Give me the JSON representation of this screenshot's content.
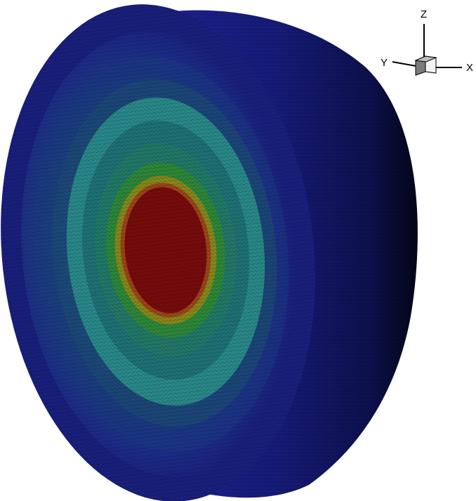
{
  "axes_triad": {
    "z_label": "Z",
    "y_label": "Y",
    "x_label": "X"
  },
  "contour_colors": {
    "outer_shell": "#1a1f86",
    "shell_dark_edge": "#0a0d3a",
    "band_blue": "#1d2d8c",
    "band_slate": "#1c4a7a",
    "band_teal": "#1f7c84",
    "band_cyan_teal": "#2a9a8e",
    "band_green": "#2e8a3a",
    "band_yellow": "#b09a1a",
    "core_red": "#7a0c0c"
  }
}
